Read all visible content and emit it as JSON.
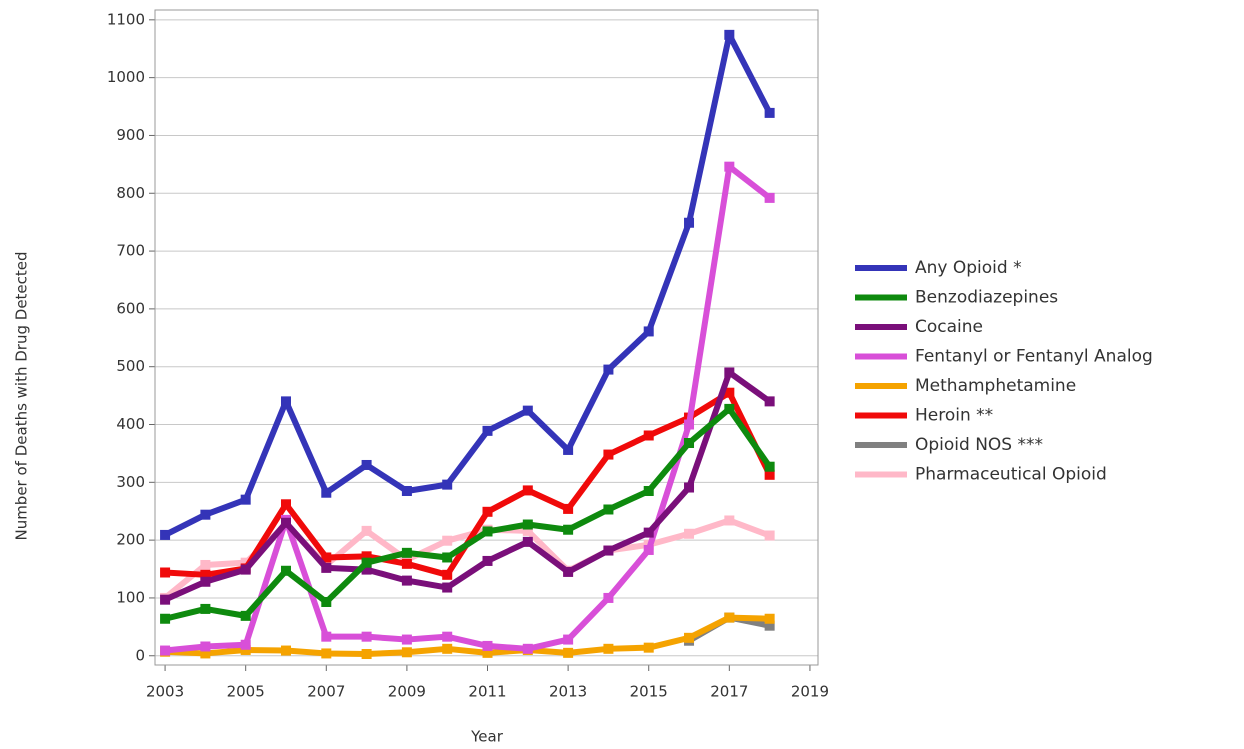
{
  "chart_data": {
    "type": "line",
    "x_label": "Year",
    "y_label": "Number of Deaths with Drug Detected",
    "x": [
      2003,
      2004,
      2005,
      2006,
      2007,
      2008,
      2009,
      2010,
      2011,
      2012,
      2013,
      2014,
      2015,
      2016,
      2017,
      2018
    ],
    "xlim": [
      2002.75,
      2019.2
    ],
    "xticks": [
      2003,
      2005,
      2007,
      2009,
      2011,
      2013,
      2015,
      2017,
      2019
    ],
    "ylim": [
      -16,
      1117
    ],
    "yticks": [
      0,
      100,
      200,
      300,
      400,
      500,
      600,
      700,
      800,
      900,
      1000,
      1100
    ],
    "grid": true,
    "legend": "right",
    "series": [
      {
        "name": "Any Opioid *",
        "color": "#3434b8",
        "values": [
          209,
          244,
          270,
          440,
          282,
          330,
          285,
          296,
          389,
          424,
          356,
          495,
          561,
          749,
          1074,
          939
        ]
      },
      {
        "name": "Benzodiazepines",
        "color": "#0e8a0e",
        "values": [
          64,
          81,
          69,
          147,
          93,
          161,
          178,
          170,
          215,
          227,
          218,
          253,
          285,
          368,
          427,
          327
        ]
      },
      {
        "name": "Cocaine",
        "color": "#7a0f7a",
        "values": [
          97,
          128,
          149,
          230,
          152,
          149,
          130,
          118,
          164,
          197,
          145,
          182,
          213,
          291,
          490,
          440
        ]
      },
      {
        "name": "Fentanyl or Fentanyl Analog",
        "color": "#d84fd8",
        "values": [
          9,
          16,
          19,
          235,
          33,
          33,
          28,
          33,
          17,
          12,
          28,
          100,
          183,
          400,
          846,
          792
        ]
      },
      {
        "name": "Methamphetamine",
        "color": "#f5a300",
        "values": [
          7,
          4,
          10,
          9,
          4,
          3,
          6,
          12,
          5,
          10,
          5,
          12,
          14,
          31,
          66,
          64
        ]
      },
      {
        "name": "Heroin **",
        "color": "#f00a0a",
        "values": [
          144,
          140,
          151,
          262,
          170,
          172,
          159,
          140,
          249,
          286,
          254,
          348,
          381,
          412,
          455,
          313
        ]
      },
      {
        "name": "Opioid NOS ***",
        "color": "#808080",
        "values": [
          null,
          null,
          null,
          null,
          null,
          null,
          null,
          null,
          null,
          null,
          null,
          null,
          null,
          26,
          66,
          52
        ]
      },
      {
        "name": "Pharmaceutical Opioid",
        "color": "#ffb8c8",
        "values": [
          100,
          157,
          161,
          227,
          157,
          216,
          166,
          199,
          218,
          216,
          147,
          182,
          192,
          211,
          234,
          208
        ]
      }
    ]
  }
}
